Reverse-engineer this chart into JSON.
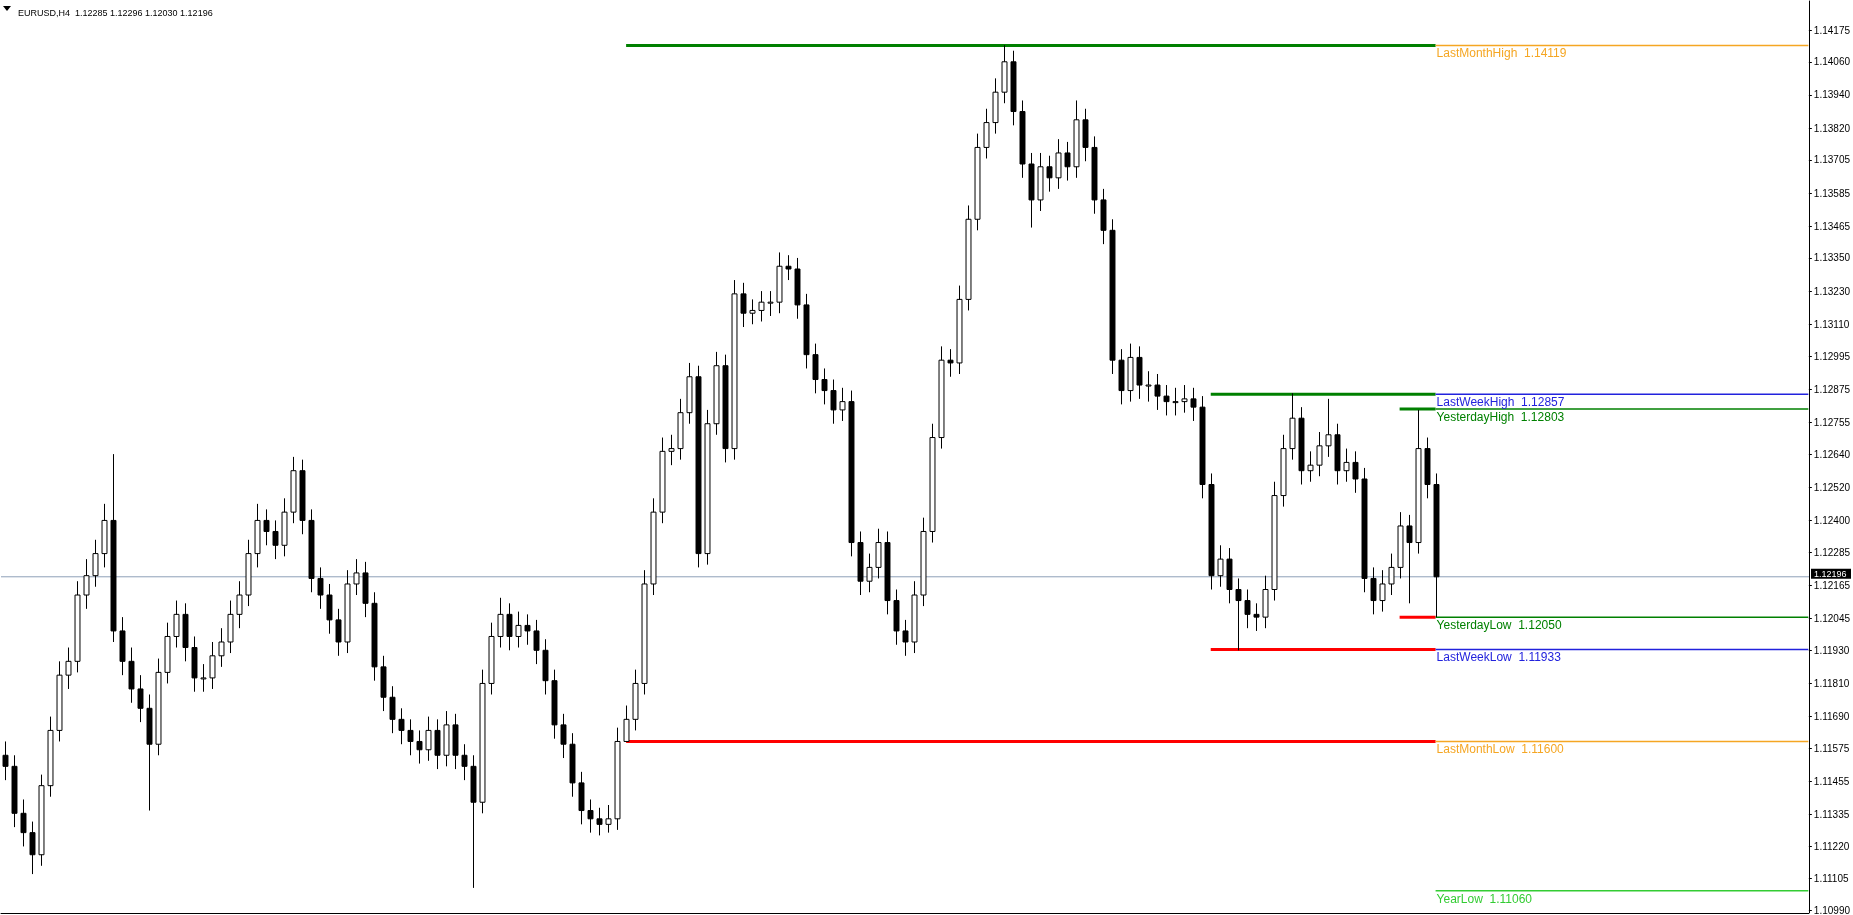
{
  "chart_data": {
    "type": "candlestick",
    "title": "EURUSD,H4  1.12285 1.12296 1.12030 1.12196",
    "categories": [
      null,
      null,
      null,
      null,
      null,
      null,
      null,
      null,
      null,
      null,
      null,
      null,
      null,
      null,
      null,
      null,
      null,
      null,
      null,
      null,
      null,
      null,
      null,
      null,
      null,
      null,
      null,
      null,
      null,
      null,
      null,
      null,
      null,
      null,
      null,
      null,
      null,
      null,
      null,
      null,
      null,
      null,
      null,
      null,
      null,
      null,
      null,
      null,
      null,
      null,
      null,
      null,
      null,
      null,
      null,
      null,
      null,
      null,
      null,
      null,
      null,
      null,
      null,
      null,
      null,
      null,
      null,
      null,
      null,
      null,
      null,
      null,
      null,
      null,
      null,
      null,
      null,
      null,
      null,
      null,
      null,
      null,
      null,
      null,
      null,
      null,
      null,
      null,
      null,
      null,
      null,
      null,
      null,
      null,
      null,
      null,
      null,
      null,
      null,
      null,
      null,
      null,
      null,
      null,
      null,
      null,
      null,
      null,
      null,
      null,
      null,
      null,
      null,
      null,
      null,
      null,
      null,
      null,
      null,
      null,
      null,
      null,
      null,
      null,
      null,
      null,
      null,
      null,
      null,
      null,
      null,
      null,
      null,
      null,
      null,
      null,
      null,
      null,
      null,
      null,
      null,
      null,
      null,
      null,
      null,
      null,
      null,
      null,
      null,
      null,
      null,
      null,
      null,
      null,
      null,
      null,
      null,
      null,
      null,
      null,
      null,
      null,
      null,
      null,
      null,
      null,
      null,
      null,
      null,
      null,
      null,
      null,
      null,
      null,
      null,
      null,
      null,
      null,
      null,
      null,
      null,
      null,
      null,
      null,
      null,
      null,
      null,
      null,
      null,
      null,
      null,
      null,
      null,
      null,
      null,
      null,
      null,
      null,
      null,
      null,
      null
    ],
    "ohlc": [
      [
        1.1155,
        1.116,
        1.1146,
        1.1151
      ],
      [
        1.1151,
        1.1155,
        1.1129,
        1.1134
      ],
      [
        1.1134,
        1.1139,
        1.1122,
        1.1127
      ],
      [
        1.1127,
        1.1131,
        1.1112,
        1.1119
      ],
      [
        1.1119,
        1.1148,
        1.1115,
        1.1144
      ],
      [
        1.1144,
        1.1169,
        1.114,
        1.1164
      ],
      [
        1.1164,
        1.1189,
        1.116,
        1.1184
      ],
      [
        1.1184,
        1.1194,
        1.1179,
        1.1189
      ],
      [
        1.1189,
        1.1218,
        1.1185,
        1.1213
      ],
      [
        1.1213,
        1.1226,
        1.1208,
        1.122
      ],
      [
        1.122,
        1.1233,
        1.1216,
        1.1228
      ],
      [
        1.1228,
        1.1246,
        1.1223,
        1.124
      ],
      [
        1.124,
        1.1264,
        1.1196,
        1.12
      ],
      [
        1.12,
        1.1205,
        1.1184,
        1.1189
      ],
      [
        1.1189,
        1.1194,
        1.1174,
        1.1179
      ],
      [
        1.1179,
        1.1184,
        1.1167,
        1.1172
      ],
      [
        1.1172,
        1.1177,
        1.1135,
        1.1159
      ],
      [
        1.1159,
        1.119,
        1.1155,
        1.1185
      ],
      [
        1.1185,
        1.1203,
        1.1181,
        1.1198
      ],
      [
        1.1198,
        1.1211,
        1.1194,
        1.1206
      ],
      [
        1.1206,
        1.121,
        1.1189,
        1.1194
      ],
      [
        1.1194,
        1.1198,
        1.1178,
        1.1183
      ],
      [
        1.1183,
        1.1188,
        1.1178,
        1.1183
      ],
      [
        1.1183,
        1.1196,
        1.1179,
        1.1191
      ],
      [
        1.1191,
        1.1201,
        1.1187,
        1.1196
      ],
      [
        1.1196,
        1.1211,
        1.1192,
        1.1206
      ],
      [
        1.1206,
        1.1218,
        1.1201,
        1.1213
      ],
      [
        1.1213,
        1.1233,
        1.1209,
        1.1228
      ],
      [
        1.1228,
        1.1246,
        1.1223,
        1.124
      ],
      [
        1.124,
        1.1244,
        1.1231,
        1.1236
      ],
      [
        1.1236,
        1.124,
        1.1226,
        1.1231
      ],
      [
        1.1231,
        1.1248,
        1.1227,
        1.1243
      ],
      [
        1.1243,
        1.1263,
        1.1239,
        1.1258
      ],
      [
        1.1258,
        1.1262,
        1.1235,
        1.124
      ],
      [
        1.124,
        1.1244,
        1.1214,
        1.1219
      ],
      [
        1.1219,
        1.1223,
        1.1208,
        1.1213
      ],
      [
        1.1213,
        1.1217,
        1.1199,
        1.1204
      ],
      [
        1.1204,
        1.1208,
        1.1191,
        1.1196
      ],
      [
        1.1196,
        1.1222,
        1.1192,
        1.1217
      ],
      [
        1.1217,
        1.1226,
        1.1213,
        1.1221
      ],
      [
        1.1221,
        1.1225,
        1.1205,
        1.121
      ],
      [
        1.121,
        1.1214,
        1.1182,
        1.1187
      ],
      [
        1.1187,
        1.1191,
        1.1171,
        1.1176
      ],
      [
        1.1176,
        1.118,
        1.1163,
        1.1168
      ],
      [
        1.1168,
        1.1172,
        1.1159,
        1.1164
      ],
      [
        1.1164,
        1.1168,
        1.1155,
        1.116
      ],
      [
        1.116,
        1.1164,
        1.1152,
        1.1157
      ],
      [
        1.1157,
        1.1169,
        1.1153,
        1.1164
      ],
      [
        1.1164,
        1.1168,
        1.115,
        1.1155
      ],
      [
        1.1155,
        1.1171,
        1.1151,
        1.1166
      ],
      [
        1.1166,
        1.117,
        1.115,
        1.1155
      ],
      [
        1.1155,
        1.1159,
        1.1146,
        1.1151
      ],
      [
        1.1151,
        1.1155,
        1.1107,
        1.1138
      ],
      [
        1.1138,
        1.1186,
        1.1134,
        1.1181
      ],
      [
        1.1181,
        1.1203,
        1.1177,
        1.1198
      ],
      [
        1.1198,
        1.1212,
        1.1194,
        1.1206
      ],
      [
        1.1206,
        1.121,
        1.1193,
        1.1198
      ],
      [
        1.1198,
        1.1207,
        1.1194,
        1.1202
      ],
      [
        1.1202,
        1.1206,
        1.1195,
        1.12
      ],
      [
        1.12,
        1.1204,
        1.1188,
        1.1193
      ],
      [
        1.1193,
        1.1197,
        1.1177,
        1.1182
      ],
      [
        1.1182,
        1.1186,
        1.1161,
        1.1166
      ],
      [
        1.1166,
        1.117,
        1.1154,
        1.1159
      ],
      [
        1.1159,
        1.1163,
        1.114,
        1.1145
      ],
      [
        1.1145,
        1.1149,
        1.113,
        1.1135
      ],
      [
        1.1135,
        1.1139,
        1.1127,
        1.1132
      ],
      [
        1.1132,
        1.1136,
        1.1126,
        1.113
      ],
      [
        1.113,
        1.1137,
        1.1127,
        1.1132
      ],
      [
        1.1132,
        1.1165,
        1.1128,
        1.116
      ],
      [
        1.116,
        1.1173,
        1.116,
        1.1168
      ],
      [
        1.1168,
        1.1186,
        1.1164,
        1.1181
      ],
      [
        1.1181,
        1.1222,
        1.1177,
        1.1217
      ],
      [
        1.1217,
        1.1248,
        1.1213,
        1.1243
      ],
      [
        1.1243,
        1.127,
        1.1239,
        1.1265
      ],
      [
        1.1265,
        1.1271,
        1.126,
        1.1266
      ],
      [
        1.1266,
        1.1284,
        1.1262,
        1.1279
      ],
      [
        1.1279,
        1.1297,
        1.1275,
        1.1292
      ],
      [
        1.1292,
        1.1296,
        1.1223,
        1.1228
      ],
      [
        1.1228,
        1.128,
        1.1224,
        1.1275
      ],
      [
        1.1275,
        1.1301,
        1.1271,
        1.1296
      ],
      [
        1.1296,
        1.13,
        1.1261,
        1.1266
      ],
      [
        1.1266,
        1.1327,
        1.1262,
        1.1322
      ],
      [
        1.1322,
        1.1326,
        1.131,
        1.1315
      ],
      [
        1.1315,
        1.132,
        1.1311,
        1.1316
      ],
      [
        1.1316,
        1.1323,
        1.1312,
        1.1319
      ],
      [
        1.1319,
        1.1323,
        1.1314,
        1.1319
      ],
      [
        1.1319,
        1.1337,
        1.1315,
        1.1332
      ],
      [
        1.1332,
        1.1336,
        1.1327,
        1.1331
      ],
      [
        1.1331,
        1.1335,
        1.1313,
        1.1318
      ],
      [
        1.1318,
        1.1322,
        1.1295,
        1.13
      ],
      [
        1.13,
        1.1304,
        1.1286,
        1.1291
      ],
      [
        1.1291,
        1.1295,
        1.1282,
        1.1287
      ],
      [
        1.1287,
        1.1291,
        1.1275,
        1.128
      ],
      [
        1.128,
        1.1288,
        1.1276,
        1.1283
      ],
      [
        1.1283,
        1.1287,
        1.1227,
        1.1232
      ],
      [
        1.1232,
        1.1236,
        1.1213,
        1.1218
      ],
      [
        1.1218,
        1.1228,
        1.1214,
        1.1223
      ],
      [
        1.1223,
        1.1237,
        1.1219,
        1.1232
      ],
      [
        1.1232,
        1.1236,
        1.1206,
        1.1211
      ],
      [
        1.1211,
        1.1215,
        1.1195,
        1.12
      ],
      [
        1.12,
        1.1204,
        1.1191,
        1.1196
      ],
      [
        1.1196,
        1.1218,
        1.1192,
        1.1213
      ],
      [
        1.1213,
        1.1241,
        1.1209,
        1.1236
      ],
      [
        1.1236,
        1.1275,
        1.1232,
        1.127
      ],
      [
        1.127,
        1.1303,
        1.1266,
        1.1298
      ],
      [
        1.1298,
        1.1302,
        1.1292,
        1.1297
      ],
      [
        1.1297,
        1.1325,
        1.1293,
        1.132
      ],
      [
        1.132,
        1.1354,
        1.1316,
        1.1349
      ],
      [
        1.1349,
        1.138,
        1.1345,
        1.1375
      ],
      [
        1.1375,
        1.1389,
        1.1371,
        1.1384
      ],
      [
        1.1384,
        1.14,
        1.138,
        1.1395
      ],
      [
        1.1395,
        1.1412,
        1.1391,
        1.1406
      ],
      [
        1.1406,
        1.141,
        1.1383,
        1.1388
      ],
      [
        1.1388,
        1.1392,
        1.1364,
        1.1369
      ],
      [
        1.1369,
        1.1373,
        1.1346,
        1.1356
      ],
      [
        1.1356,
        1.1373,
        1.1352,
        1.1368
      ],
      [
        1.1368,
        1.1372,
        1.1359,
        1.1364
      ],
      [
        1.1364,
        1.1378,
        1.136,
        1.1373
      ],
      [
        1.1373,
        1.1377,
        1.1363,
        1.1368
      ],
      [
        1.1368,
        1.1392,
        1.1364,
        1.1385
      ],
      [
        1.1385,
        1.1389,
        1.137,
        1.1375
      ],
      [
        1.1375,
        1.1379,
        1.1351,
        1.1356
      ],
      [
        1.1356,
        1.136,
        1.134,
        1.1345
      ],
      [
        1.1345,
        1.1349,
        1.1293,
        1.1298
      ],
      [
        1.1298,
        1.1302,
        1.1282,
        1.1287
      ],
      [
        1.1287,
        1.1304,
        1.1283,
        1.1299
      ],
      [
        1.1299,
        1.1303,
        1.1284,
        1.1289
      ],
      [
        1.1289,
        1.1294,
        1.1283,
        1.1289
      ],
      [
        1.1289,
        1.1293,
        1.128,
        1.1285
      ],
      [
        1.1285,
        1.1289,
        1.1278,
        1.1283
      ],
      [
        1.1283,
        1.1288,
        1.1278,
        1.1283
      ],
      [
        1.1283,
        1.1289,
        1.1279,
        1.1284
      ],
      [
        1.1284,
        1.1288,
        1.1276,
        1.1281
      ],
      [
        1.1281,
        1.1285,
        1.1248,
        1.1253
      ],
      [
        1.1253,
        1.1257,
        1.1215,
        1.122
      ],
      [
        1.122,
        1.1231,
        1.1216,
        1.1226
      ],
      [
        1.1226,
        1.123,
        1.121,
        1.1215
      ],
      [
        1.1215,
        1.1219,
        1.1193,
        1.1211
      ],
      [
        1.1211,
        1.1215,
        1.1201,
        1.1206
      ],
      [
        1.1206,
        1.121,
        1.12,
        1.1205
      ],
      [
        1.1205,
        1.122,
        1.1201,
        1.1215
      ],
      [
        1.1215,
        1.1254,
        1.1211,
        1.1249
      ],
      [
        1.1249,
        1.1271,
        1.1245,
        1.1266
      ],
      [
        1.1266,
        1.1286,
        1.1262,
        1.1277
      ],
      [
        1.1277,
        1.1281,
        1.1253,
        1.1258
      ],
      [
        1.1258,
        1.1265,
        1.1254,
        1.126
      ],
      [
        1.126,
        1.1272,
        1.1256,
        1.1267
      ],
      [
        1.1267,
        1.1284,
        1.1263,
        1.1271
      ],
      [
        1.1271,
        1.1275,
        1.1253,
        1.1258
      ],
      [
        1.1258,
        1.1266,
        1.1254,
        1.1261
      ],
      [
        1.1261,
        1.1265,
        1.125,
        1.1255
      ],
      [
        1.1255,
        1.1259,
        1.1214,
        1.1219
      ],
      [
        1.1219,
        1.1223,
        1.1206,
        1.1211
      ],
      [
        1.1211,
        1.1222,
        1.1207,
        1.1217
      ],
      [
        1.1217,
        1.1228,
        1.1213,
        1.1223
      ],
      [
        1.1223,
        1.1243,
        1.1219,
        1.1238
      ],
      [
        1.1238,
        1.1242,
        1.121,
        1.1232
      ],
      [
        1.1232,
        1.128,
        1.1228,
        1.1266
      ],
      [
        1.1266,
        1.127,
        1.1248,
        1.1253
      ],
      [
        1.1253,
        1.1257,
        1.1205,
        1.12196
      ],
      null,
      null,
      null,
      null,
      null,
      null,
      null,
      null,
      null,
      null,
      null,
      null,
      null,
      null,
      null,
      null,
      null,
      null,
      null,
      null,
      null,
      null,
      null,
      null,
      null,
      null,
      null,
      null,
      null,
      null,
      null,
      null,
      null,
      null,
      null,
      null,
      null,
      null,
      null,
      null,
      null
    ],
    "series": [
      {
        "type": "line",
        "color": "#008000",
        "values": [
          null,
          null,
          null,
          null,
          null,
          null,
          null,
          null,
          null,
          null,
          null,
          null,
          null,
          null,
          null,
          null,
          null,
          null,
          null,
          null,
          null,
          null,
          null,
          null,
          null,
          null,
          null,
          null,
          null,
          null,
          null,
          null,
          null,
          null,
          null,
          null,
          null,
          null,
          null,
          null,
          null,
          null,
          null,
          null,
          null,
          null,
          null,
          null,
          null,
          null,
          null,
          null,
          null,
          null,
          null,
          null,
          null,
          null,
          null,
          null,
          null,
          null,
          null,
          null,
          null,
          null,
          null,
          null,
          null,
          1.14119,
          1.14119,
          1.14119,
          1.14119,
          1.14119,
          1.14119,
          1.14119,
          1.14119,
          1.14119,
          1.14119,
          1.14119,
          1.14119,
          1.14119,
          1.14119,
          1.14119,
          1.14119,
          1.14119,
          1.14119,
          1.14119,
          1.14119,
          1.14119,
          1.14119,
          1.14119,
          1.14119,
          1.14119,
          1.14119,
          1.14119,
          1.14119,
          1.14119,
          1.14119,
          1.14119,
          1.14119,
          1.14119,
          1.14119,
          1.14119,
          1.14119,
          1.14119,
          1.14119,
          1.14119,
          1.14119,
          1.14119,
          1.14119,
          1.14119,
          1.14119,
          1.14119,
          1.14119,
          1.14119,
          1.14119,
          1.14119,
          1.14119,
          1.14119,
          1.14119,
          1.14119,
          1.14119,
          1.14119,
          1.14119,
          1.14119,
          1.14119,
          1.14119,
          1.14119,
          1.14119,
          1.14119,
          1.14119,
          1.14119,
          1.14119,
          1.14119,
          1.14119,
          1.14119,
          1.14119,
          1.14119,
          1.14119,
          1.14119,
          1.14119,
          1.14119,
          1.14119,
          1.14119,
          1.14119,
          1.14119,
          1.14119,
          1.14119,
          1.14119,
          1.14119,
          1.14119,
          1.14119,
          1.14119,
          1.14119,
          1.14119,
          1.14119,
          1.14119,
          1.14119,
          1.14119,
          null,
          null,
          null,
          null,
          null,
          null,
          null,
          null,
          null,
          null,
          null,
          null,
          null,
          null,
          null,
          null,
          null,
          null,
          null,
          null,
          null,
          null,
          null,
          null,
          null,
          null,
          null,
          null,
          null,
          null,
          null,
          null,
          null,
          null,
          null,
          null,
          null,
          null,
          null,
          null,
          null
        ]
      },
      {
        "type": "line",
        "color": "#ff0000",
        "values": [
          null,
          null,
          null,
          null,
          null,
          null,
          null,
          null,
          null,
          null,
          null,
          null,
          null,
          null,
          null,
          null,
          null,
          null,
          null,
          null,
          null,
          null,
          null,
          null,
          null,
          null,
          null,
          null,
          null,
          null,
          null,
          null,
          null,
          null,
          null,
          null,
          null,
          null,
          null,
          null,
          null,
          null,
          null,
          null,
          null,
          null,
          null,
          null,
          null,
          null,
          null,
          null,
          null,
          null,
          null,
          null,
          null,
          null,
          null,
          null,
          null,
          null,
          null,
          null,
          null,
          null,
          null,
          null,
          null,
          1.116,
          1.116,
          1.116,
          1.116,
          1.116,
          1.116,
          1.116,
          1.116,
          1.116,
          1.116,
          1.116,
          1.116,
          1.116,
          1.116,
          1.116,
          1.116,
          1.116,
          1.116,
          1.116,
          1.116,
          1.116,
          1.116,
          1.116,
          1.116,
          1.116,
          1.116,
          1.116,
          1.116,
          1.116,
          1.116,
          1.116,
          1.116,
          1.116,
          1.116,
          1.116,
          1.116,
          1.116,
          1.116,
          1.116,
          1.116,
          1.116,
          1.116,
          1.116,
          1.116,
          1.116,
          1.116,
          1.116,
          1.116,
          1.116,
          1.116,
          1.116,
          1.116,
          1.116,
          1.116,
          1.116,
          1.116,
          1.116,
          1.116,
          1.116,
          1.116,
          1.116,
          1.116,
          1.116,
          1.116,
          1.116,
          1.116,
          1.116,
          1.116,
          1.116,
          1.116,
          1.116,
          1.116,
          1.116,
          1.116,
          1.116,
          1.116,
          1.116,
          1.116,
          1.116,
          1.116,
          1.116,
          1.116,
          1.116,
          1.116,
          1.116,
          1.116,
          1.116,
          1.116,
          1.116,
          1.116,
          1.116,
          null,
          null,
          null,
          null,
          null,
          null,
          null,
          null,
          null,
          null,
          null,
          null,
          null,
          null,
          null,
          null,
          null,
          null,
          null,
          null,
          null,
          null,
          null,
          null,
          null,
          null,
          null,
          null,
          null,
          null,
          null,
          null,
          null,
          null,
          null,
          null,
          null,
          null,
          null,
          null,
          null
        ]
      },
      {
        "type": "line",
        "color": "#008000",
        "values": [
          null,
          null,
          null,
          null,
          null,
          null,
          null,
          null,
          null,
          null,
          null,
          null,
          null,
          null,
          null,
          null,
          null,
          null,
          null,
          null,
          null,
          null,
          null,
          null,
          null,
          null,
          null,
          null,
          null,
          null,
          null,
          null,
          null,
          null,
          null,
          null,
          null,
          null,
          null,
          null,
          null,
          null,
          null,
          null,
          null,
          null,
          null,
          null,
          null,
          null,
          null,
          null,
          null,
          null,
          null,
          null,
          null,
          null,
          null,
          null,
          null,
          null,
          null,
          null,
          null,
          null,
          null,
          null,
          null,
          null,
          null,
          null,
          null,
          null,
          null,
          null,
          null,
          null,
          null,
          null,
          null,
          null,
          null,
          null,
          null,
          null,
          null,
          null,
          null,
          null,
          null,
          null,
          null,
          null,
          null,
          null,
          null,
          null,
          null,
          null,
          null,
          null,
          null,
          null,
          null,
          null,
          null,
          null,
          null,
          null,
          null,
          null,
          null,
          null,
          null,
          null,
          null,
          null,
          null,
          null,
          null,
          null,
          null,
          null,
          null,
          null,
          null,
          null,
          null,
          null,
          null,
          null,
          null,
          null,
          1.12857,
          1.12857,
          1.12857,
          1.12857,
          1.12857,
          1.12857,
          1.12857,
          1.12857,
          1.12857,
          1.12857,
          1.12857,
          1.12857,
          1.12857,
          1.12857,
          1.12857,
          1.12857,
          1.12857,
          1.12857,
          1.12857,
          1.12857,
          1.12857,
          1.12857,
          1.12857,
          1.12857,
          1.12857,
          1.12857,
          null,
          null,
          null,
          null,
          null,
          null,
          null,
          null,
          null,
          null,
          null,
          null,
          null,
          null,
          null,
          null,
          null,
          null,
          null,
          null,
          null,
          null,
          null,
          null,
          null,
          null,
          null,
          null,
          null,
          null,
          null,
          null,
          null,
          null,
          null,
          null,
          null,
          null,
          null,
          null,
          null
        ]
      },
      {
        "type": "line",
        "color": "#ff0000",
        "values": [
          null,
          null,
          null,
          null,
          null,
          null,
          null,
          null,
          null,
          null,
          null,
          null,
          null,
          null,
          null,
          null,
          null,
          null,
          null,
          null,
          null,
          null,
          null,
          null,
          null,
          null,
          null,
          null,
          null,
          null,
          null,
          null,
          null,
          null,
          null,
          null,
          null,
          null,
          null,
          null,
          null,
          null,
          null,
          null,
          null,
          null,
          null,
          null,
          null,
          null,
          null,
          null,
          null,
          null,
          null,
          null,
          null,
          null,
          null,
          null,
          null,
          null,
          null,
          null,
          null,
          null,
          null,
          null,
          null,
          null,
          null,
          null,
          null,
          null,
          null,
          null,
          null,
          null,
          null,
          null,
          null,
          null,
          null,
          null,
          null,
          null,
          null,
          null,
          null,
          null,
          null,
          null,
          null,
          null,
          null,
          null,
          null,
          null,
          null,
          null,
          null,
          null,
          null,
          null,
          null,
          null,
          null,
          null,
          null,
          null,
          null,
          null,
          null,
          null,
          null,
          null,
          null,
          null,
          null,
          null,
          null,
          null,
          null,
          null,
          null,
          null,
          null,
          null,
          null,
          null,
          null,
          null,
          null,
          null,
          1.11933,
          1.11933,
          1.11933,
          1.11933,
          1.11933,
          1.11933,
          1.11933,
          1.11933,
          1.11933,
          1.11933,
          1.11933,
          1.11933,
          1.11933,
          1.11933,
          1.11933,
          1.11933,
          1.11933,
          1.11933,
          1.11933,
          1.11933,
          1.11933,
          1.11933,
          1.11933,
          1.11933,
          1.11933,
          1.11933,
          null,
          null,
          null,
          null,
          null,
          null,
          null,
          null,
          null,
          null,
          null,
          null,
          null,
          null,
          null,
          null,
          null,
          null,
          null,
          null,
          null,
          null,
          null,
          null,
          null,
          null,
          null,
          null,
          null,
          null,
          null,
          null,
          null,
          null,
          null,
          null,
          null,
          null,
          null,
          null,
          null
        ]
      },
      {
        "type": "line",
        "color": "#008000",
        "values": [
          null,
          null,
          null,
          null,
          null,
          null,
          null,
          null,
          null,
          null,
          null,
          null,
          null,
          null,
          null,
          null,
          null,
          null,
          null,
          null,
          null,
          null,
          null,
          null,
          null,
          null,
          null,
          null,
          null,
          null,
          null,
          null,
          null,
          null,
          null,
          null,
          null,
          null,
          null,
          null,
          null,
          null,
          null,
          null,
          null,
          null,
          null,
          null,
          null,
          null,
          null,
          null,
          null,
          null,
          null,
          null,
          null,
          null,
          null,
          null,
          null,
          null,
          null,
          null,
          null,
          null,
          null,
          null,
          null,
          null,
          null,
          null,
          null,
          null,
          null,
          null,
          null,
          null,
          null,
          null,
          null,
          null,
          null,
          null,
          null,
          null,
          null,
          null,
          null,
          null,
          null,
          null,
          null,
          null,
          null,
          null,
          null,
          null,
          null,
          null,
          null,
          null,
          null,
          null,
          null,
          null,
          null,
          null,
          null,
          null,
          null,
          null,
          null,
          null,
          null,
          null,
          null,
          null,
          null,
          null,
          null,
          null,
          null,
          null,
          null,
          null,
          null,
          null,
          null,
          null,
          null,
          null,
          null,
          null,
          null,
          null,
          null,
          null,
          null,
          null,
          null,
          null,
          null,
          null,
          null,
          null,
          null,
          null,
          null,
          null,
          null,
          null,
          null,
          null,
          null,
          1.12803,
          1.12803,
          1.12803,
          1.12803,
          1.12803,
          null,
          null,
          null,
          null,
          null,
          null,
          null,
          null,
          null,
          null,
          null,
          null,
          null,
          null,
          null,
          null,
          null,
          null,
          null,
          null,
          null,
          null,
          null,
          null,
          null,
          null,
          null,
          null,
          null,
          null,
          null,
          null,
          null,
          null,
          null,
          null,
          null,
          null,
          null,
          null,
          null
        ]
      },
      {
        "type": "line",
        "color": "#ff0000",
        "values": [
          null,
          null,
          null,
          null,
          null,
          null,
          null,
          null,
          null,
          null,
          null,
          null,
          null,
          null,
          null,
          null,
          null,
          null,
          null,
          null,
          null,
          null,
          null,
          null,
          null,
          null,
          null,
          null,
          null,
          null,
          null,
          null,
          null,
          null,
          null,
          null,
          null,
          null,
          null,
          null,
          null,
          null,
          null,
          null,
          null,
          null,
          null,
          null,
          null,
          null,
          null,
          null,
          null,
          null,
          null,
          null,
          null,
          null,
          null,
          null,
          null,
          null,
          null,
          null,
          null,
          null,
          null,
          null,
          null,
          null,
          null,
          null,
          null,
          null,
          null,
          null,
          null,
          null,
          null,
          null,
          null,
          null,
          null,
          null,
          null,
          null,
          null,
          null,
          null,
          null,
          null,
          null,
          null,
          null,
          null,
          null,
          null,
          null,
          null,
          null,
          null,
          null,
          null,
          null,
          null,
          null,
          null,
          null,
          null,
          null,
          null,
          null,
          null,
          null,
          null,
          null,
          null,
          null,
          null,
          null,
          null,
          null,
          null,
          null,
          null,
          null,
          null,
          null,
          null,
          null,
          null,
          null,
          null,
          null,
          null,
          null,
          null,
          null,
          null,
          null,
          null,
          null,
          null,
          null,
          null,
          null,
          null,
          null,
          null,
          null,
          null,
          null,
          null,
          null,
          null,
          1.1205,
          1.1205,
          1.1205,
          1.1205,
          1.1205,
          null,
          null,
          null,
          null,
          null,
          null,
          null,
          null,
          null,
          null,
          null,
          null,
          null,
          null,
          null,
          null,
          null,
          null,
          null,
          null,
          null,
          null,
          null,
          null,
          null,
          null,
          null,
          null,
          null,
          null,
          null,
          null,
          null,
          null,
          null,
          null,
          null,
          null,
          null,
          null,
          null
        ]
      }
    ],
    "ref_lines": [
      {
        "axis": "y",
        "value": 1.14119,
        "label": "LastMonthHigh  1.14119",
        "color": "#f5a623"
      },
      {
        "axis": "y",
        "value": 1.12857,
        "label": "LastWeekHigh  1.12857",
        "color": "#2222dd"
      },
      {
        "axis": "y",
        "value": 1.12803,
        "label": "YesterdayHigh  1.12803",
        "color": "#008000"
      },
      {
        "axis": "y",
        "value": 1.1205,
        "label": "YesterdayLow  1.12050",
        "color": "#008000"
      },
      {
        "axis": "y",
        "value": 1.11933,
        "label": "LastWeekLow  1.11933",
        "color": "#2222dd"
      },
      {
        "axis": "y",
        "value": 1.116,
        "label": "LastMonthLow  1.11600",
        "color": "#f5a623"
      },
      {
        "axis": "y",
        "value": 1.1106,
        "label": "YearLow  1.11060",
        "color": "#33cc33"
      },
      {
        "axis": "y",
        "value": 1.12196,
        "label": "1.12196",
        "color": "#8ea0b8"
      }
    ],
    "ylim": [
      1.1098,
      1.1428
    ],
    "yticks": [
      1.14175,
      {
        "value": 1.1406,
        "label": "1.14060"
      },
      {
        "value": 1.1394,
        "label": "1.13940"
      },
      {
        "value": 1.1382,
        "label": "1.13820"
      },
      1.13705,
      1.13585,
      1.13465,
      {
        "value": 1.1335,
        "label": "1.13350"
      },
      {
        "value": 1.1323,
        "label": "1.13230"
      },
      {
        "value": 1.1311,
        "label": "1.13110"
      },
      1.12995,
      1.12875,
      1.12755,
      {
        "value": 1.1264,
        "label": "1.12640"
      },
      {
        "value": 1.1252,
        "label": "1.12520"
      },
      {
        "value": 1.124,
        "label": "1.12400"
      },
      1.12285,
      1.12165,
      1.12045,
      {
        "value": 1.1193,
        "label": "1.11930"
      },
      {
        "value": 1.1181,
        "label": "1.11810"
      },
      {
        "value": 1.1169,
        "label": "1.11690"
      },
      1.11575,
      1.11455,
      1.11335,
      {
        "value": 1.1122,
        "label": "1.11220"
      },
      1.11105,
      {
        "value": 1.1099,
        "label": "1.10990"
      }
    ],
    "grid": false,
    "tick_labels": "y"
  }
}
